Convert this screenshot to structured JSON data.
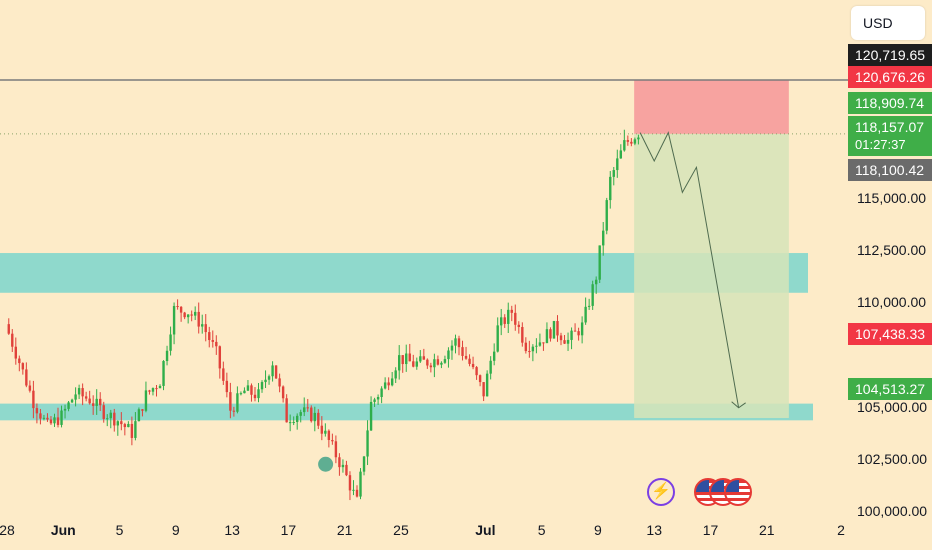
{
  "currency_label": "USD",
  "price_labels": {
    "top_close": {
      "text": "120,719.65",
      "bg": "#1e1e1e"
    },
    "stop": {
      "text": "120,676.26",
      "bg": "#f23645"
    },
    "high": {
      "text": "118,909.74",
      "bg": "#3fae48"
    },
    "last": {
      "text": "118,157.07",
      "timer": "01:27:37",
      "bg": "#3fae48"
    },
    "entry": {
      "text": "118,100.42",
      "bg": "#6b6b6b"
    },
    "mid": {
      "text": "107,438.33",
      "bg": "#f23645"
    },
    "target": {
      "text": "104,513.27",
      "bg": "#3fae48"
    }
  },
  "icons": [
    "flash-icon",
    "us-flag-icon",
    "us-flag-icon",
    "us-flag-icon"
  ],
  "colors": {
    "background": "#fdebc8",
    "up_candle": "#2fae4a",
    "down_candle": "#e0413a",
    "zone": "#8fd9cc",
    "stop_zone": "#f7a3a0",
    "target_zone": "#d6e4b8"
  },
  "chart_data": {
    "type": "candlestick",
    "y_axis_ticks": [
      "115,000.00",
      "112,500.00",
      "110,000.00",
      "105,000.00",
      "102,500.00",
      "100,000.00"
    ],
    "y_axis_values": [
      115000,
      112500,
      110000,
      105000,
      102500,
      100000
    ],
    "ylim": [
      98200,
      124500
    ],
    "x_axis_ticks": [
      {
        "label": "28",
        "bold": false
      },
      {
        "label": "Jun",
        "bold": true
      },
      {
        "label": "5",
        "bold": false
      },
      {
        "label": "9",
        "bold": false
      },
      {
        "label": "13",
        "bold": false
      },
      {
        "label": "17",
        "bold": false
      },
      {
        "label": "21",
        "bold": false
      },
      {
        "label": "25",
        "bold": false
      },
      {
        "label": "Jul",
        "bold": true
      },
      {
        "label": "5",
        "bold": false
      },
      {
        "label": "9",
        "bold": false
      },
      {
        "label": "13",
        "bold": false
      },
      {
        "label": "17",
        "bold": false
      },
      {
        "label": "21",
        "bold": false
      },
      {
        "label": "2",
        "bold": false
      }
    ],
    "x_axis_dates": [
      "2025-05-28",
      "2025-06-01",
      "2025-06-05",
      "2025-06-09",
      "2025-06-13",
      "2025-06-17",
      "2025-06-21",
      "2025-06-25",
      "2025-07-01",
      "2025-07-05",
      "2025-07-09",
      "2025-07-13",
      "2025-07-17",
      "2025-07-21",
      "2025-07-25"
    ],
    "price_path": [
      [
        "2025-05-28",
        109000
      ],
      [
        "2025-05-29",
        107200
      ],
      [
        "2025-05-30",
        105300
      ],
      [
        "2025-05-31",
        104100
      ],
      [
        "2025-06-01",
        104600
      ],
      [
        "2025-06-02",
        105700
      ],
      [
        "2025-06-03",
        105400
      ],
      [
        "2025-06-04",
        104800
      ],
      [
        "2025-06-05",
        104400
      ],
      [
        "2025-06-06",
        103800
      ],
      [
        "2025-06-07",
        105600
      ],
      [
        "2025-06-08",
        106300
      ],
      [
        "2025-06-09",
        109700
      ],
      [
        "2025-06-10",
        109600
      ],
      [
        "2025-06-11",
        109000
      ],
      [
        "2025-06-12",
        107600
      ],
      [
        "2025-06-13",
        104900
      ],
      [
        "2025-06-14",
        105800
      ],
      [
        "2025-06-15",
        105600
      ],
      [
        "2025-06-16",
        107200
      ],
      [
        "2025-06-17",
        104500
      ],
      [
        "2025-06-18",
        104800
      ],
      [
        "2025-06-19",
        104600
      ],
      [
        "2025-06-20",
        103400
      ],
      [
        "2025-06-21",
        102100
      ],
      [
        "2025-06-22",
        100500
      ],
      [
        "2025-06-23",
        105200
      ],
      [
        "2025-06-24",
        106100
      ],
      [
        "2025-06-25",
        107400
      ],
      [
        "2025-06-26",
        107100
      ],
      [
        "2025-06-27",
        107200
      ],
      [
        "2025-06-28",
        107400
      ],
      [
        "2025-06-29",
        108200
      ],
      [
        "2025-06-30",
        107100
      ],
      [
        "2025-07-01",
        105700
      ],
      [
        "2025-07-02",
        108800
      ],
      [
        "2025-07-03",
        109600
      ],
      [
        "2025-07-04",
        108000
      ],
      [
        "2025-07-05",
        108200
      ],
      [
        "2025-07-06",
        108800
      ],
      [
        "2025-07-07",
        108200
      ],
      [
        "2025-07-08",
        108900
      ],
      [
        "2025-07-09",
        111300
      ],
      [
        "2025-07-10",
        115900
      ],
      [
        "2025-07-11",
        117600
      ],
      [
        "2025-07-12",
        118157
      ]
    ],
    "levels": [
      {
        "name": "stop",
        "value": 120676.26
      },
      {
        "name": "entry",
        "value": 118100.42
      },
      {
        "name": "target",
        "value": 104513.27
      }
    ],
    "zones": [
      {
        "name": "resistance-zone",
        "from": 110500,
        "to": 112400
      },
      {
        "name": "support-zone",
        "from": 104400,
        "to": 105200
      }
    ],
    "projection": [
      [
        "2025-07-12",
        118157
      ],
      [
        "2025-07-13",
        116800
      ],
      [
        "2025-07-14",
        118157
      ],
      [
        "2025-07-15",
        115300
      ],
      [
        "2025-07-16",
        116500
      ],
      [
        "2025-07-19",
        105000
      ]
    ],
    "marker": {
      "date": "2025-06-20",
      "value": 102300
    },
    "grid": false
  }
}
